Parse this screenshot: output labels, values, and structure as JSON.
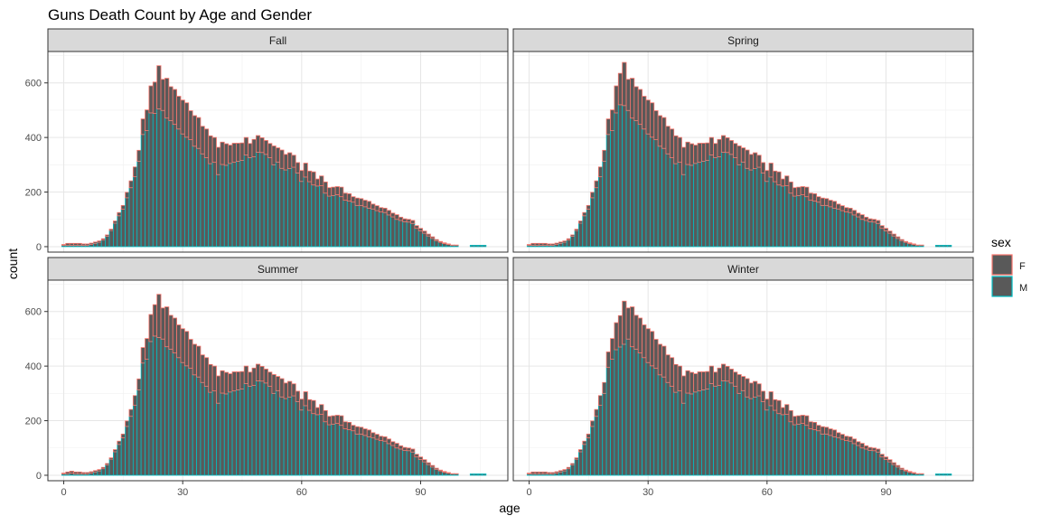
{
  "chart_data": {
    "type": "bar",
    "stacked": true,
    "title": "Guns Death Count by Age and Gender",
    "xlabel": "age",
    "ylabel": "count",
    "xlim": [
      -4,
      112
    ],
    "ylim": [
      -20,
      715
    ],
    "x_ticks": [
      0,
      30,
      60,
      90
    ],
    "y_ticks": [
      0,
      200,
      400,
      600
    ],
    "grid": true,
    "legend": {
      "title": "sex",
      "position": "right",
      "entries": [
        {
          "label": "F",
          "fill": "#595959",
          "border": "#F8766D"
        },
        {
          "label": "M",
          "fill": "#595959",
          "border": "#00BFC4"
        }
      ]
    },
    "bin_start": 0,
    "bin_width": 1,
    "facets": [
      {
        "name": "Fall",
        "M": [
          5,
          5,
          5,
          5,
          5,
          5,
          5,
          8,
          12,
          16,
          24,
          38,
          59,
          86,
          113,
          137,
          179,
          216,
          256,
          313,
          411,
          425,
          490,
          488,
          505,
          499,
          471,
          462,
          448,
          431,
          413,
          401,
          392,
          368,
          360,
          340,
          326,
          304,
          309,
          264,
          301,
          298,
          305,
          309,
          313,
          316,
          336,
          326,
          329,
          346,
          345,
          338,
          326,
          300,
          310,
          287,
          281,
          286,
          291,
          270,
          239,
          255,
          238,
          226,
          222,
          223,
          196,
          185,
          187,
          190,
          183,
          170,
          167,
          163,
          151,
          151,
          146,
          141,
          138,
          132,
          127,
          125,
          116,
          109,
          100,
          96,
          91,
          90,
          85,
          67,
          58,
          49,
          39,
          30,
          22,
          16,
          11,
          8,
          5,
          5,
          0,
          0,
          0,
          5,
          5,
          5,
          5,
          0
        ],
        "F": [
          3,
          7,
          7,
          7,
          7,
          5,
          5,
          5,
          5,
          5,
          5,
          5,
          5,
          8,
          12,
          14,
          20,
          25,
          36,
          40,
          57,
          76,
          99,
          115,
          158,
          114,
          146,
          124,
          128,
          120,
          124,
          126,
          106,
          112,
          113,
          101,
          105,
          102,
          91,
          100,
          82,
          79,
          67,
          70,
          66,
          64,
          64,
          52,
          64,
          61,
          54,
          51,
          52,
          69,
          52,
          67,
          57,
          58,
          44,
          38,
          40,
          51,
          39,
          48,
          26,
          36,
          41,
          31,
          31,
          30,
          35,
          26,
          27,
          20,
          27,
          25,
          24,
          25,
          18,
          18,
          16,
          16,
          17,
          14,
          17,
          12,
          11,
          10,
          11,
          10,
          9,
          8,
          7,
          6,
          4,
          3,
          3,
          2,
          1,
          1,
          0,
          0,
          0,
          0,
          0,
          0,
          0,
          0
        ]
      },
      {
        "name": "Spring",
        "M": [
          5,
          5,
          5,
          5,
          5,
          5,
          5,
          8,
          12,
          16,
          24,
          38,
          59,
          86,
          113,
          137,
          179,
          216,
          256,
          313,
          411,
          425,
          490,
          520,
          517,
          499,
          471,
          462,
          448,
          431,
          413,
          401,
          392,
          368,
          360,
          340,
          326,
          304,
          309,
          264,
          301,
          298,
          305,
          309,
          313,
          316,
          336,
          326,
          329,
          346,
          345,
          338,
          326,
          300,
          310,
          287,
          281,
          286,
          291,
          270,
          239,
          255,
          238,
          226,
          222,
          223,
          196,
          185,
          187,
          190,
          183,
          170,
          167,
          163,
          151,
          151,
          146,
          141,
          138,
          132,
          127,
          125,
          116,
          109,
          100,
          96,
          91,
          90,
          85,
          67,
          58,
          49,
          39,
          30,
          22,
          16,
          11,
          8,
          5,
          5,
          0,
          0,
          0,
          5,
          5,
          5,
          5,
          0
        ],
        "F": [
          3,
          7,
          7,
          7,
          7,
          5,
          5,
          5,
          5,
          5,
          5,
          5,
          5,
          8,
          12,
          14,
          20,
          25,
          36,
          40,
          57,
          76,
          99,
          115,
          158,
          114,
          146,
          124,
          128,
          120,
          124,
          126,
          106,
          112,
          113,
          101,
          105,
          102,
          91,
          100,
          82,
          79,
          67,
          70,
          66,
          64,
          64,
          52,
          64,
          61,
          54,
          51,
          52,
          69,
          52,
          67,
          57,
          58,
          44,
          38,
          40,
          51,
          39,
          48,
          26,
          36,
          41,
          31,
          31,
          30,
          35,
          26,
          27,
          20,
          27,
          25,
          24,
          25,
          18,
          18,
          16,
          16,
          17,
          14,
          17,
          12,
          11,
          10,
          11,
          10,
          9,
          8,
          7,
          6,
          4,
          3,
          3,
          2,
          1,
          1,
          0,
          0,
          0,
          0,
          0,
          0,
          0,
          0
        ]
      },
      {
        "name": "Summer",
        "M": [
          5,
          5,
          8,
          5,
          5,
          5,
          5,
          8,
          12,
          16,
          24,
          38,
          59,
          86,
          113,
          137,
          179,
          216,
          256,
          313,
          411,
          425,
          490,
          510,
          505,
          499,
          471,
          462,
          448,
          431,
          413,
          401,
          392,
          368,
          360,
          340,
          326,
          304,
          309,
          264,
          301,
          298,
          305,
          309,
          313,
          316,
          336,
          326,
          329,
          346,
          345,
          338,
          326,
          300,
          310,
          287,
          281,
          286,
          291,
          270,
          239,
          255,
          238,
          226,
          222,
          223,
          196,
          185,
          187,
          190,
          183,
          170,
          167,
          163,
          151,
          151,
          146,
          141,
          138,
          132,
          127,
          125,
          116,
          109,
          100,
          96,
          91,
          90,
          85,
          67,
          58,
          49,
          39,
          30,
          22,
          16,
          11,
          8,
          5,
          5,
          0,
          0,
          0,
          5,
          5,
          5,
          5,
          0
        ],
        "F": [
          3,
          7,
          7,
          7,
          7,
          5,
          5,
          5,
          5,
          5,
          5,
          5,
          5,
          8,
          12,
          14,
          20,
          25,
          36,
          40,
          57,
          76,
          99,
          115,
          158,
          114,
          146,
          124,
          128,
          120,
          124,
          126,
          106,
          112,
          113,
          101,
          105,
          102,
          91,
          100,
          82,
          79,
          67,
          70,
          66,
          64,
          64,
          52,
          64,
          61,
          54,
          51,
          52,
          69,
          52,
          67,
          57,
          58,
          44,
          38,
          40,
          51,
          39,
          48,
          26,
          36,
          41,
          31,
          31,
          30,
          35,
          26,
          27,
          20,
          27,
          25,
          24,
          25,
          18,
          18,
          16,
          16,
          17,
          14,
          17,
          12,
          11,
          10,
          11,
          10,
          9,
          8,
          7,
          6,
          4,
          3,
          3,
          2,
          1,
          1,
          0,
          0,
          0,
          0,
          0,
          0,
          0,
          0
        ]
      },
      {
        "name": "Winter",
        "M": [
          5,
          5,
          5,
          5,
          5,
          5,
          5,
          8,
          12,
          16,
          24,
          38,
          59,
          86,
          113,
          137,
          179,
          216,
          256,
          300,
          395,
          425,
          460,
          470,
          480,
          499,
          471,
          462,
          448,
          431,
          413,
          401,
          392,
          368,
          360,
          340,
          326,
          304,
          309,
          264,
          301,
          298,
          305,
          309,
          313,
          316,
          336,
          326,
          329,
          346,
          345,
          338,
          326,
          300,
          310,
          287,
          281,
          286,
          291,
          270,
          239,
          255,
          238,
          226,
          222,
          223,
          196,
          185,
          187,
          190,
          183,
          170,
          167,
          163,
          151,
          151,
          146,
          141,
          138,
          132,
          127,
          125,
          116,
          109,
          100,
          96,
          91,
          90,
          85,
          67,
          58,
          49,
          39,
          30,
          22,
          16,
          11,
          8,
          5,
          5,
          0,
          0,
          0,
          5,
          5,
          5,
          5,
          0
        ],
        "F": [
          3,
          7,
          7,
          7,
          7,
          5,
          5,
          5,
          5,
          5,
          5,
          5,
          5,
          8,
          12,
          14,
          20,
          25,
          36,
          40,
          57,
          76,
          99,
          115,
          158,
          114,
          146,
          124,
          128,
          120,
          124,
          126,
          106,
          112,
          113,
          101,
          105,
          102,
          91,
          100,
          82,
          79,
          67,
          70,
          66,
          64,
          64,
          52,
          64,
          61,
          54,
          51,
          52,
          69,
          52,
          67,
          57,
          58,
          44,
          38,
          40,
          51,
          39,
          48,
          26,
          36,
          41,
          31,
          31,
          30,
          35,
          26,
          27,
          20,
          27,
          25,
          24,
          25,
          18,
          18,
          16,
          16,
          17,
          14,
          17,
          12,
          11,
          10,
          11,
          10,
          9,
          8,
          7,
          6,
          4,
          3,
          3,
          2,
          1,
          1,
          0,
          0,
          0,
          0,
          0,
          0,
          0,
          0
        ]
      }
    ]
  }
}
